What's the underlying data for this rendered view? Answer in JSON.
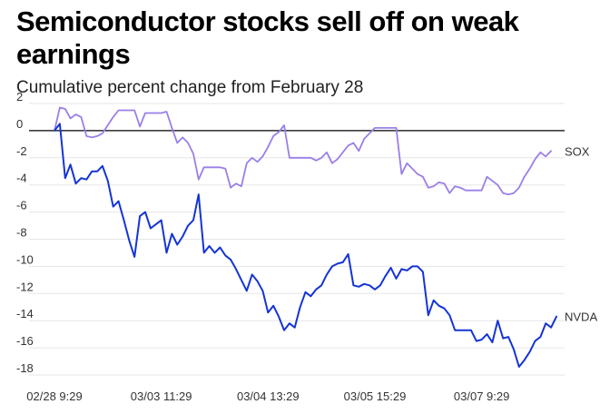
{
  "header": {
    "title": "Semiconductor stocks sell off on weak earnings",
    "subtitle": "Cumulative percent change from February 28"
  },
  "chart_data": {
    "type": "line",
    "title": "Semiconductor stocks sell off on weak earnings",
    "subtitle": "Cumulative percent change from February 28",
    "ylim": [
      -19,
      2.5
    ],
    "yticks": [
      2,
      0,
      -2,
      -4,
      -6,
      -8,
      -10,
      -12,
      -14,
      -16,
      -18
    ],
    "xticks": [
      "02/28 9:29",
      "03/03 11:29",
      "03/04 13:29",
      "03/05 15:29",
      "03/07 9:29"
    ],
    "xtick_index": [
      0,
      20,
      40,
      60,
      80
    ],
    "xlim": [
      -6,
      96
    ],
    "grid": true,
    "zero_line": true,
    "legend": "inline-right",
    "series": [
      {
        "name": "SOX",
        "color": "#9b7fe8",
        "values": [
          0,
          1.7,
          1.6,
          0.9,
          1.2,
          1.0,
          -0.4,
          -0.5,
          -0.4,
          -0.2,
          0.4,
          1.0,
          1.5,
          1.5,
          1.5,
          1.5,
          0.3,
          1.3,
          1.3,
          1.3,
          1.3,
          1.4,
          0.2,
          -0.9,
          -0.5,
          -0.9,
          -1.7,
          -3.6,
          -2.7,
          -2.7,
          -2.7,
          -2.7,
          -2.8,
          -4.2,
          -3.9,
          -4.1,
          -2.4,
          -2.0,
          -2.3,
          -1.9,
          -1.2,
          -0.4,
          -0.1,
          0.4,
          -2.0,
          -2.0,
          -2.0,
          -2.0,
          -2.0,
          -2.2,
          -2.0,
          -1.6,
          -2.4,
          -2.1,
          -1.6,
          -1.1,
          -0.9,
          -1.5,
          -0.6,
          -0.2,
          0.2,
          0.2,
          0.2,
          0.2,
          0.2,
          -3.2,
          -2.4,
          -2.8,
          -3.2,
          -3.4,
          -4.2,
          -4.1,
          -3.8,
          -3.9,
          -4.6,
          -4.1,
          -4.2,
          -4.4,
          -4.4,
          -4.4,
          -4.4,
          -3.4,
          -3.7,
          -4.0,
          -4.6,
          -4.7,
          -4.6,
          -4.2,
          -3.4,
          -2.8,
          -2.1,
          -1.6,
          -1.9,
          -1.5
        ],
        "last_label": "SOX"
      },
      {
        "name": "NVDA",
        "color": "#1534d6",
        "values": [
          0,
          0.5,
          -3.5,
          -2.5,
          -3.9,
          -3.5,
          -3.6,
          -3.0,
          -3.0,
          -2.6,
          -3.7,
          -5.6,
          -5.2,
          -6.6,
          -8.1,
          -9.3,
          -6.3,
          -6.0,
          -7.2,
          -6.9,
          -6.6,
          -9.0,
          -7.6,
          -8.4,
          -7.8,
          -7.0,
          -6.6,
          -4.7,
          -9.0,
          -8.5,
          -9.0,
          -8.6,
          -9.2,
          -9.5,
          -10.2,
          -11.0,
          -11.8,
          -10.6,
          -11.1,
          -11.8,
          -13.4,
          -12.9,
          -13.7,
          -14.7,
          -14.2,
          -14.5,
          -13.0,
          -11.9,
          -12.2,
          -11.7,
          -11.4,
          -10.6,
          -10.0,
          -9.8,
          -9.7,
          -9.1,
          -11.4,
          -11.5,
          -11.3,
          -11.4,
          -11.7,
          -11.4,
          -10.7,
          -10.1,
          -10.9,
          -10.2,
          -10.3,
          -10.0,
          -10.0,
          -10.4,
          -13.6,
          -12.5,
          -12.9,
          -13.1,
          -13.6,
          -14.7,
          -14.7,
          -14.7,
          -14.7,
          -15.5,
          -15.4,
          -15.0,
          -15.6,
          -14.0,
          -15.3,
          -15.2,
          -16.1,
          -17.4,
          -16.9,
          -16.3,
          -15.5,
          -15.2,
          -14.2,
          -14.5,
          -13.7
        ],
        "last_label": "NVDA"
      }
    ]
  }
}
